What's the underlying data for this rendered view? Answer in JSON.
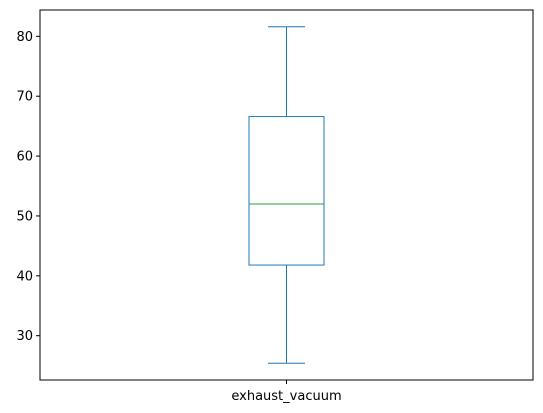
{
  "chart_data": {
    "type": "box",
    "title": "",
    "xlabel": "",
    "ylabel": "",
    "categories": [
      "exhaust_vacuum"
    ],
    "boxes": [
      {
        "category": "exhaust_vacuum",
        "whisker_low": 25.4,
        "q1": 41.8,
        "median": 52.0,
        "q3": 66.6,
        "whisker_high": 81.6
      }
    ],
    "ylim": [
      22.6,
      84.4
    ],
    "yticks": [
      30,
      40,
      50,
      60,
      70,
      80
    ],
    "grid": false,
    "legend": "none",
    "colors": {
      "box": "#1f77b4",
      "median": "#2ca02c",
      "axes": "#000000"
    }
  }
}
